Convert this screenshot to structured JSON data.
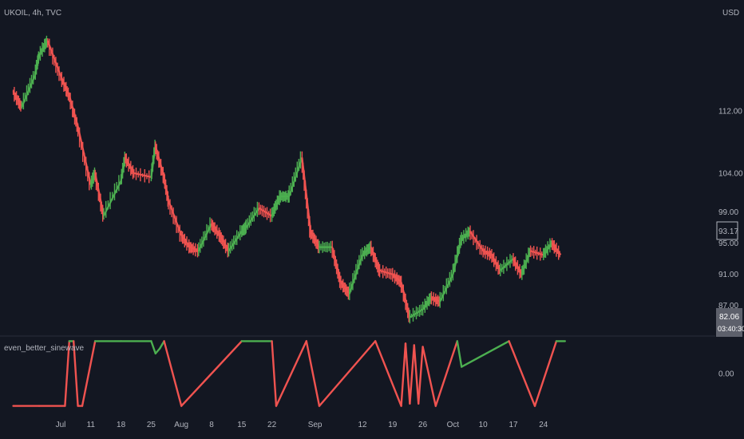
{
  "header": {
    "symbol": "UKOIL, 4h, TVC",
    "currency": "USD",
    "indicator_name": "even_better_sinewave"
  },
  "price_axis": {
    "ticks": [
      "112.00",
      "104.00",
      "99.00",
      "95.00",
      "91.00",
      "87.00"
    ],
    "last_price": "93.17",
    "ind_last_value": "82.06",
    "countdown": "03:40:30"
  },
  "indicator_axis": {
    "ticks": [
      "0.00"
    ]
  },
  "time_axis": {
    "ticks": [
      "Jul",
      "11",
      "18",
      "25",
      "Aug",
      "8",
      "15",
      "22",
      "Sep",
      "12",
      "19",
      "26",
      "Oct",
      "10",
      "17",
      "24"
    ]
  },
  "colors": {
    "background": "#131722",
    "up": "#4caf50",
    "down": "#f05350",
    "text": "#b2b5be",
    "pane_separator": "#2a2e39",
    "badge_bg": "#5d606b"
  },
  "chart_data": [
    {
      "type": "line",
      "series": [
        {
          "name": "UKOIL",
          "x": [
            "Jun 23",
            "Jun 25",
            "Jun 28",
            "Jun 29",
            "Jul 1",
            "Jul 4",
            "Jul 6",
            "Jul 8",
            "Jul 11",
            "Jul 12",
            "Jul 14",
            "Jul 18",
            "Jul 19",
            "Jul 21",
            "Jul 25",
            "Jul 26",
            "Jul 28",
            "Jul 29",
            "Aug 1",
            "Aug 3",
            "Aug 5",
            "Aug 8",
            "Aug 10",
            "Aug 12",
            "Aug 15",
            "Aug 16",
            "Aug 19",
            "Aug 22",
            "Aug 24",
            "Aug 26",
            "Aug 29",
            "Aug 31",
            "Sep 2",
            "Sep 5",
            "Sep 7",
            "Sep 9",
            "Sep 12",
            "Sep 14",
            "Sep 16",
            "Sep 19",
            "Sep 21",
            "Sep 23",
            "Sep 26",
            "Sep 28",
            "Sep 30",
            "Oct 3",
            "Oct 5",
            "Oct 7",
            "Oct 10",
            "Oct 12",
            "Oct 14",
            "Oct 17",
            "Oct 19",
            "Oct 21",
            "Oct 24",
            "Oct 26",
            "Oct 28"
          ],
          "values": [
            114.5,
            112.5,
            116.5,
            119.0,
            121.0,
            116.5,
            114.0,
            110.0,
            102.5,
            104.0,
            98.5,
            103.0,
            106.0,
            104.0,
            103.5,
            107.5,
            103.5,
            100.5,
            96.0,
            94.5,
            94.0,
            97.5,
            96.0,
            94.0,
            96.5,
            97.0,
            99.5,
            98.5,
            101.0,
            101.0,
            106.0,
            96.5,
            94.5,
            94.5,
            90.0,
            88.5,
            93.5,
            94.5,
            91.5,
            91.0,
            90.0,
            85.5,
            86.5,
            88.0,
            87.5,
            91.0,
            95.5,
            96.5,
            94.0,
            93.5,
            91.5,
            93.0,
            91.0,
            94.0,
            93.5,
            95.0,
            93.5
          ]
        }
      ],
      "ylabel": "USD",
      "ylim": [
        84.0,
        125.0
      ]
    },
    {
      "type": "line",
      "title": "even_better_sinewave",
      "series": [
        {
          "name": "even_better_sinewave",
          "x": [
            "Jun 23",
            "Jun 29",
            "Jul 5",
            "Jul 6",
            "Jul 7",
            "Jul 8",
            "Jul 9",
            "Jul 12",
            "Jul 18",
            "Jul 25",
            "Jul 26",
            "Jul 27",
            "Jul 28",
            "Aug 1",
            "Aug 15",
            "Aug 22",
            "Aug 23",
            "Aug 30",
            "Sep 2",
            "Sep 15",
            "Sep 21",
            "Sep 22",
            "Sep 23",
            "Sep 24",
            "Sep 25",
            "Sep 26",
            "Sep 29",
            "Oct 4",
            "Oct 5",
            "Oct 16",
            "Oct 22",
            "Oct 27",
            "Oct 29"
          ],
          "values": [
            -0.97,
            -0.97,
            -0.97,
            0.97,
            0.97,
            -0.97,
            -0.97,
            0.97,
            0.97,
            0.97,
            0.6,
            0.75,
            0.97,
            -0.97,
            0.97,
            0.97,
            -0.97,
            0.97,
            -0.97,
            0.97,
            -0.97,
            0.9,
            -0.9,
            0.85,
            -0.9,
            0.8,
            -0.97,
            0.97,
            0.2,
            0.97,
            -0.97,
            0.97,
            0.97
          ]
        }
      ],
      "ylim": [
        -1.05,
        1.05
      ]
    }
  ]
}
